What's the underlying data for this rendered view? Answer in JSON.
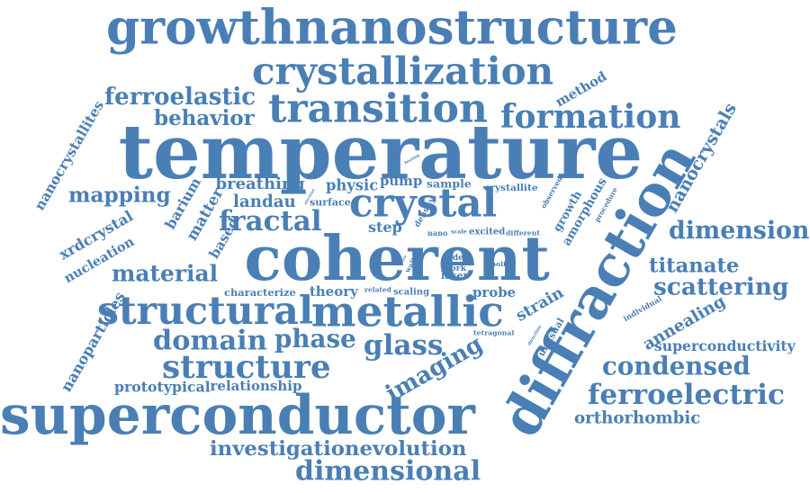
{
  "color": "#4a7fb5",
  "words": [
    {
      "text": "growthnanostructure"
    },
    {
      "text": "crystallization"
    },
    {
      "text": "transition"
    },
    {
      "text": "formation"
    },
    {
      "text": "ferroelastic"
    },
    {
      "text": "behavior"
    },
    {
      "text": "temperature"
    },
    {
      "text": "method"
    },
    {
      "text": "nanocrystallites"
    },
    {
      "text": "nanocrystals"
    },
    {
      "text": "diffraction"
    },
    {
      "text": "mapping"
    },
    {
      "text": "barium"
    },
    {
      "text": "breathing"
    },
    {
      "text": "landau"
    },
    {
      "text": "physic"
    },
    {
      "text": "pump"
    },
    {
      "text": "sample"
    },
    {
      "text": "heating"
    },
    {
      "text": "crystallite"
    },
    {
      "text": "crystal"
    },
    {
      "text": "electron"
    },
    {
      "text": "surface"
    },
    {
      "text": "density"
    },
    {
      "text": "observed"
    },
    {
      "text": "growth"
    },
    {
      "text": "amorphous"
    },
    {
      "text": "procedure"
    },
    {
      "text": "xrdcrystal"
    },
    {
      "text": "matter"
    },
    {
      "text": "based"
    },
    {
      "text": "fractal"
    },
    {
      "text": "step"
    },
    {
      "text": "nano"
    },
    {
      "text": "scale"
    },
    {
      "text": "excited"
    },
    {
      "text": "different"
    },
    {
      "text": "dimension"
    },
    {
      "text": "nucleation"
    },
    {
      "text": "coherent"
    },
    {
      "text": "titanate"
    },
    {
      "text": "material"
    },
    {
      "text": "state"
    },
    {
      "text": "wall"
    },
    {
      "text": "wave"
    },
    {
      "text": "peak"
    },
    {
      "text": "order"
    },
    {
      "text": "work"
    },
    {
      "text": "laser"
    },
    {
      "text": "cooling"
    },
    {
      "text": "scattering"
    },
    {
      "text": "nanoparticles"
    },
    {
      "text": "characterize"
    },
    {
      "text": "theory"
    },
    {
      "text": "related"
    },
    {
      "text": "scaling"
    },
    {
      "text": "probe"
    },
    {
      "text": "strain"
    },
    {
      "text": "individual"
    },
    {
      "text": "structural"
    },
    {
      "text": "metallic"
    },
    {
      "text": "annealing"
    },
    {
      "text": "tetragonal"
    },
    {
      "text": "direction"
    },
    {
      "text": "unusual"
    },
    {
      "text": "domain"
    },
    {
      "text": "phase"
    },
    {
      "text": "glass"
    },
    {
      "text": "superconductivity"
    },
    {
      "text": "structure"
    },
    {
      "text": "imaging"
    },
    {
      "text": "condensed"
    },
    {
      "text": "prototypical"
    },
    {
      "text": "relationship"
    },
    {
      "text": "ferroelectric"
    },
    {
      "text": "superconductor"
    },
    {
      "text": "orthorhombic"
    },
    {
      "text": "investigationevolution"
    },
    {
      "text": "dimensional"
    }
  ]
}
